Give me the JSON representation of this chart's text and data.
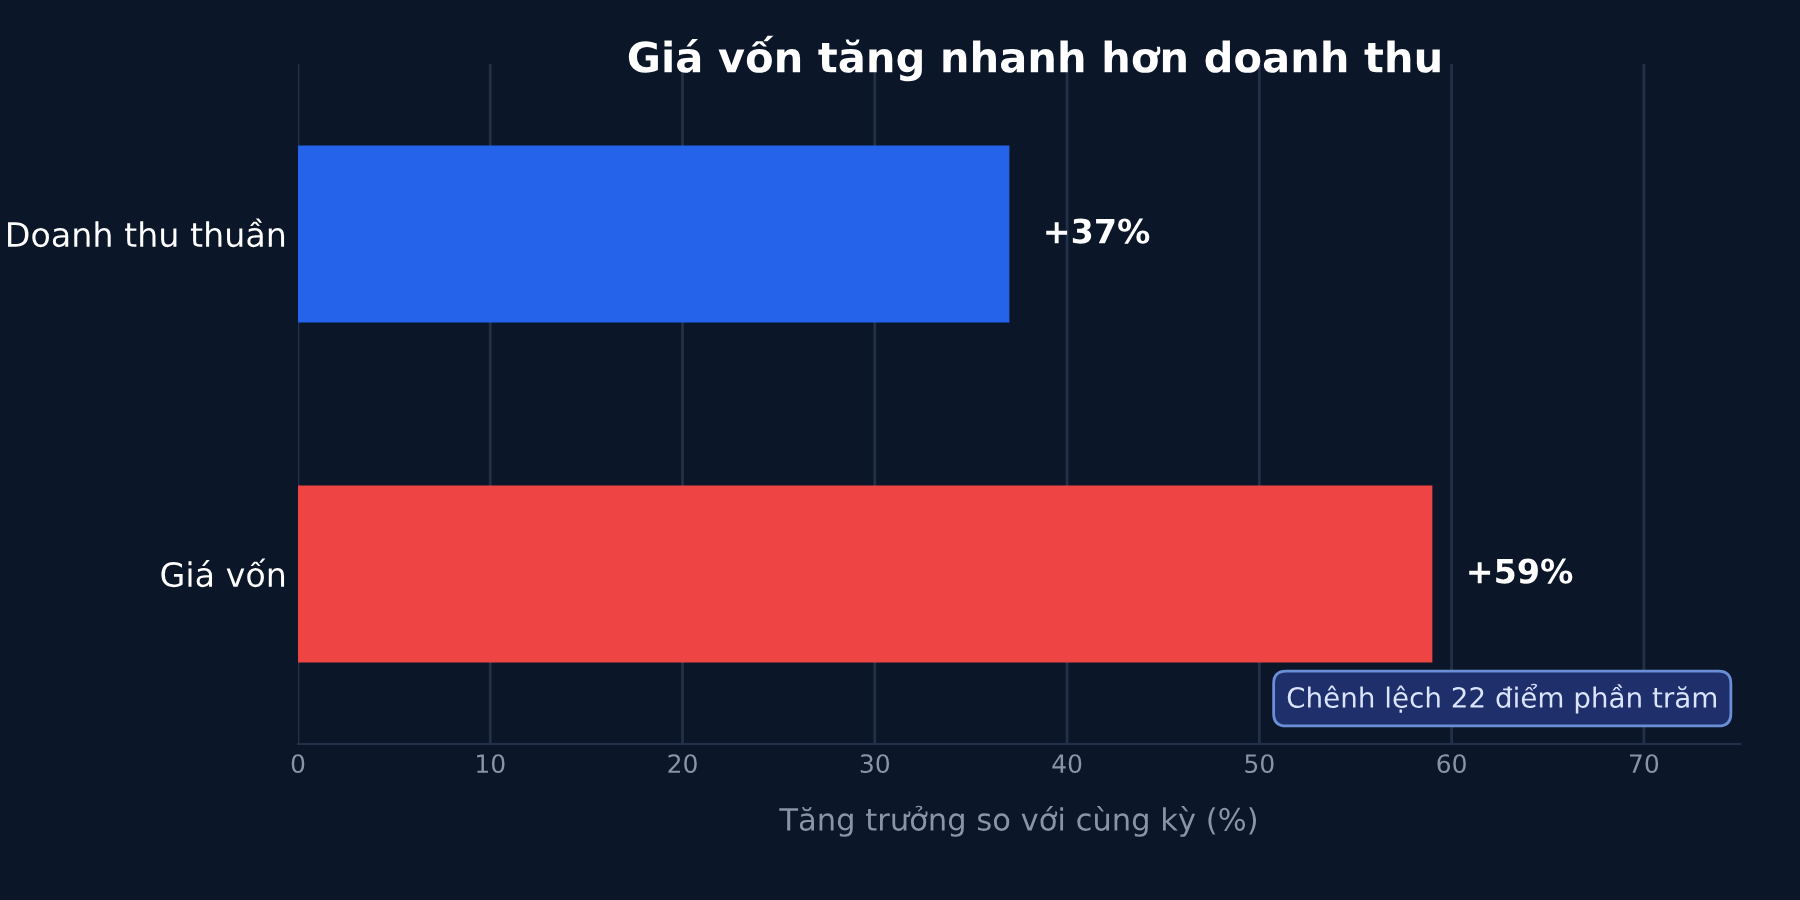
{
  "chart_data": {
    "type": "bar",
    "orientation": "horizontal",
    "title": "Giá vốn tăng nhanh hơn doanh thu",
    "categories": [
      "Doanh thu thuần",
      "Giá vốn"
    ],
    "values": [
      37,
      59
    ],
    "colors": [
      "#2563eb",
      "#ef4444"
    ],
    "value_labels": [
      "+37%",
      "+59%"
    ],
    "xlabel": "Tăng trưởng so với cùng kỳ (%)",
    "xlim": [
      0,
      75
    ],
    "xticks": [
      0,
      10,
      20,
      30,
      40,
      50,
      60,
      70
    ],
    "grid": "x",
    "annotations": [
      "Chênh lệch 22 điểm phần trăm"
    ]
  }
}
